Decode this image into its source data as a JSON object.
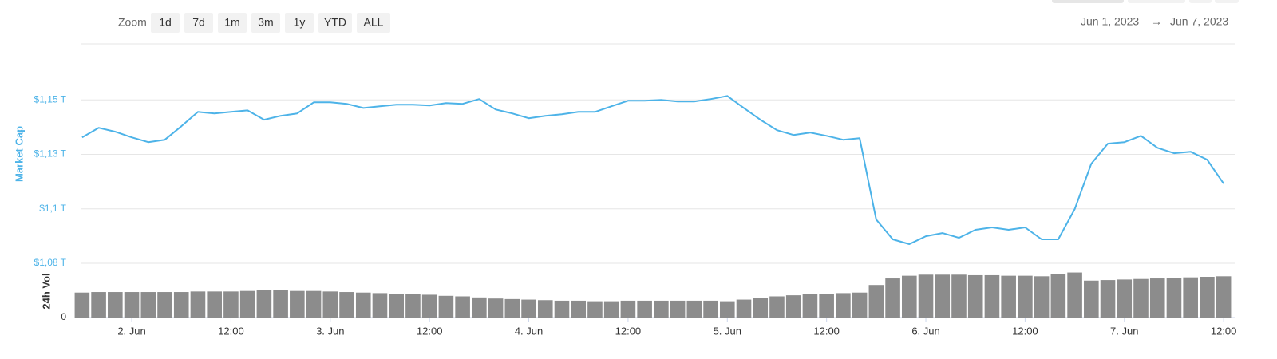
{
  "controls": {
    "zoom_label": "Zoom",
    "buttons": [
      "1d",
      "7d",
      "1m",
      "3m",
      "1y",
      "YTD",
      "ALL"
    ],
    "range_from": "Jun 1, 2023",
    "range_arrow": "→",
    "range_to": "Jun 7, 2023"
  },
  "chart_data": {
    "type": "line",
    "ylabel": "Market Cap",
    "y2label": "24h Vol",
    "x": [
      "2023-06-01T18:00",
      "2023-06-01T20:00",
      "2023-06-01T22:00",
      "2023-06-02T00:00",
      "2023-06-02T02:00",
      "2023-06-02T04:00",
      "2023-06-02T06:00",
      "2023-06-02T08:00",
      "2023-06-02T10:00",
      "2023-06-02T12:00",
      "2023-06-02T14:00",
      "2023-06-02T16:00",
      "2023-06-02T18:00",
      "2023-06-02T20:00",
      "2023-06-02T22:00",
      "2023-06-03T00:00",
      "2023-06-03T02:00",
      "2023-06-03T04:00",
      "2023-06-03T06:00",
      "2023-06-03T08:00",
      "2023-06-03T10:00",
      "2023-06-03T12:00",
      "2023-06-03T14:00",
      "2023-06-03T16:00",
      "2023-06-03T18:00",
      "2023-06-03T20:00",
      "2023-06-03T22:00",
      "2023-06-04T00:00",
      "2023-06-04T02:00",
      "2023-06-04T04:00",
      "2023-06-04T06:00",
      "2023-06-04T08:00",
      "2023-06-04T10:00",
      "2023-06-04T12:00",
      "2023-06-04T14:00",
      "2023-06-04T16:00",
      "2023-06-04T18:00",
      "2023-06-04T20:00",
      "2023-06-04T22:00",
      "2023-06-05T00:00",
      "2023-06-05T02:00",
      "2023-06-05T04:00",
      "2023-06-05T06:00",
      "2023-06-05T08:00",
      "2023-06-05T10:00",
      "2023-06-05T12:00",
      "2023-06-05T14:00",
      "2023-06-05T16:00",
      "2023-06-05T18:00",
      "2023-06-05T20:00",
      "2023-06-05T22:00",
      "2023-06-06T00:00",
      "2023-06-06T02:00",
      "2023-06-06T04:00",
      "2023-06-06T06:00",
      "2023-06-06T08:00",
      "2023-06-06T10:00",
      "2023-06-06T12:00",
      "2023-06-06T14:00",
      "2023-06-06T16:00",
      "2023-06-06T18:00",
      "2023-06-06T20:00",
      "2023-06-06T22:00",
      "2023-06-07T00:00",
      "2023-06-07T02:00",
      "2023-06-07T04:00",
      "2023-06-07T06:00",
      "2023-06-07T08:00",
      "2023-06-07T10:00",
      "2023-06-07T12:00"
    ],
    "series": [
      {
        "color": "#4db3e8",
        "values": [
          1.1328,
          1.1372,
          1.1354,
          1.1328,
          1.1306,
          1.1317,
          1.1379,
          1.1445,
          1.1438,
          1.1445,
          1.1452,
          1.1409,
          1.1427,
          1.1438,
          1.1489,
          1.1489,
          1.1482,
          1.1463,
          1.1471,
          1.1478,
          1.1478,
          1.1474,
          1.1485,
          1.1482,
          1.1504,
          1.1456,
          1.1438,
          1.1416,
          1.1427,
          1.1434,
          1.1445,
          1.1445,
          1.1471,
          1.1496,
          1.1496,
          1.15,
          1.1493,
          1.1493,
          1.1504,
          1.1518,
          1.1463,
          1.1409,
          1.1361,
          1.1339,
          1.135,
          1.1335,
          1.1317,
          1.1324,
          1.0951,
          1.086,
          1.0838,
          1.0874,
          1.0889,
          1.0867,
          1.0904,
          1.0915,
          1.0904,
          1.0915,
          1.086,
          1.086,
          1.0999,
          1.1207,
          1.1299,
          1.1306,
          1.1335,
          1.128,
          1.1255,
          1.1262,
          1.1226,
          1.1116
        ]
      },
      {
        "type": "bar",
        "axis": "y2",
        "color": "#8c8c8c",
        "values": [
          46,
          47,
          47,
          47,
          47,
          47,
          47,
          48,
          48,
          48,
          49,
          50,
          50,
          49,
          49,
          48,
          47,
          46,
          45,
          44,
          43,
          42,
          40,
          39,
          37,
          35,
          34,
          33,
          32,
          31,
          31,
          30,
          30,
          31,
          31,
          31,
          31,
          31,
          31,
          30,
          33,
          36,
          39,
          41,
          43,
          44,
          45,
          46,
          60,
          72,
          77,
          79,
          79,
          79,
          78,
          78,
          77,
          77,
          76,
          80,
          83,
          68,
          69,
          70,
          71,
          72,
          73,
          74,
          75,
          76
        ]
      }
    ],
    "xlim": [
      "2023-06-01T17:55",
      "2023-06-07T13:26"
    ],
    "xticks": [
      {
        "value": "2023-06-02T00:00",
        "label": "2. Jun"
      },
      {
        "value": "2023-06-02T12:00",
        "label": "12:00"
      },
      {
        "value": "2023-06-03T00:00",
        "label": "3. Jun"
      },
      {
        "value": "2023-06-03T12:00",
        "label": "12:00"
      },
      {
        "value": "2023-06-04T00:00",
        "label": "4. Jun"
      },
      {
        "value": "2023-06-04T12:00",
        "label": "12:00"
      },
      {
        "value": "2023-06-05T00:00",
        "label": "5. Jun"
      },
      {
        "value": "2023-06-05T12:00",
        "label": "12:00"
      },
      {
        "value": "2023-06-06T00:00",
        "label": "6. Jun"
      },
      {
        "value": "2023-06-06T12:00",
        "label": "12:00"
      },
      {
        "value": "2023-06-07T00:00",
        "label": "7. Jun"
      },
      {
        "value": "2023-06-07T12:00",
        "label": "12:00"
      }
    ],
    "ylim": [
      1.075,
      1.175
    ],
    "yticks": [
      {
        "value": 1.075,
        "label": "$1,08 T"
      },
      {
        "value": 1.1,
        "label": "$1,1 T"
      },
      {
        "value": 1.125,
        "label": "$1,13 T"
      },
      {
        "value": 1.15,
        "label": "$1,15 T"
      }
    ],
    "y2lim": [
      0,
      100
    ],
    "y2ticks": [
      0
    ],
    "grid": true
  }
}
